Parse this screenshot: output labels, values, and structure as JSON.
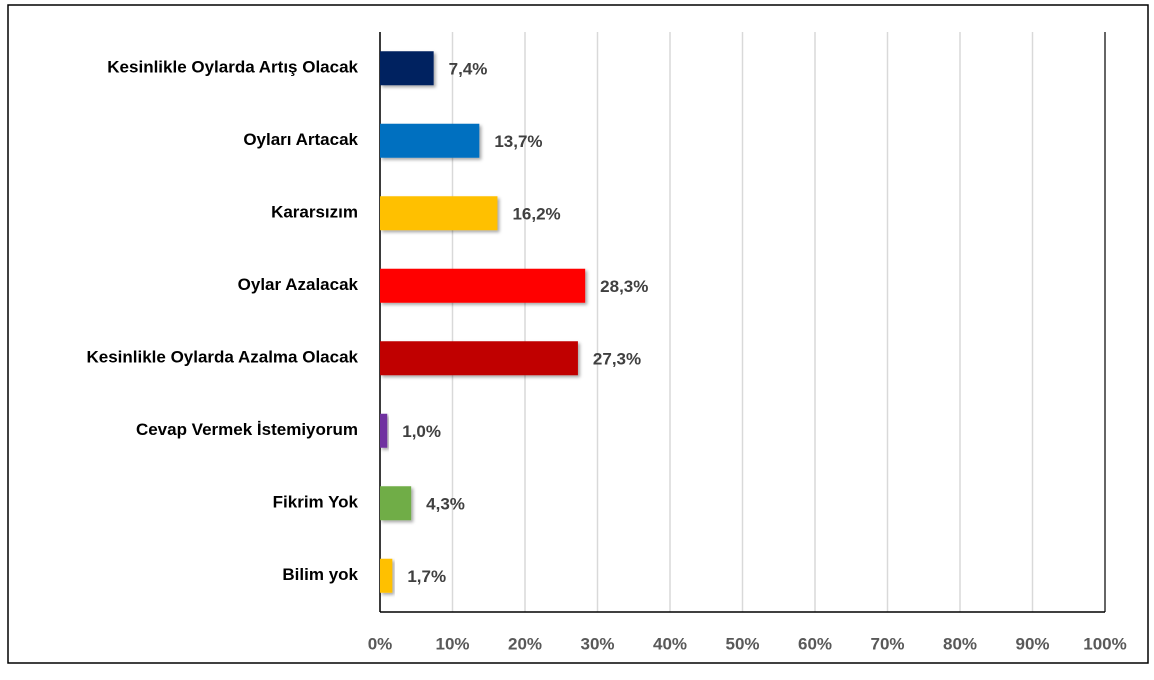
{
  "chart_data": {
    "type": "barh",
    "categories": [
      "Kesinlikle Oylarda Artış Olacak",
      "Oyları Artacak",
      "Kararsızım",
      "Oylar Azalacak",
      "Kesinlikle Oylarda Azalma Olacak",
      "Cevap Vermek İstemiyorum",
      "Fikrim Yok",
      "Bilim yok"
    ],
    "values": [
      7.4,
      13.7,
      16.2,
      28.3,
      27.3,
      1.0,
      4.3,
      1.7
    ],
    "value_labels": [
      "7,4%",
      "13,7%",
      "16,2%",
      "28,3%",
      "27,3%",
      "1,0%",
      "4,3%",
      "1,7%"
    ],
    "colors": [
      "#002060",
      "#0070c0",
      "#ffc000",
      "#ff0000",
      "#c00000",
      "#7030a0",
      "#70ad47",
      "#ffc000"
    ],
    "xlim": [
      0,
      100
    ],
    "xticks": [
      {
        "value": 0,
        "label": "0%"
      },
      {
        "value": 10,
        "label": "10%"
      },
      {
        "value": 20,
        "label": "20%"
      },
      {
        "value": 30,
        "label": "30%"
      },
      {
        "value": 40,
        "label": "40%"
      },
      {
        "value": 50,
        "label": "50%"
      },
      {
        "value": 60,
        "label": "60%"
      },
      {
        "value": 70,
        "label": "70%"
      },
      {
        "value": 80,
        "label": "80%"
      },
      {
        "value": 90,
        "label": "90%"
      },
      {
        "value": 100,
        "label": "100%"
      }
    ],
    "grid": true
  }
}
